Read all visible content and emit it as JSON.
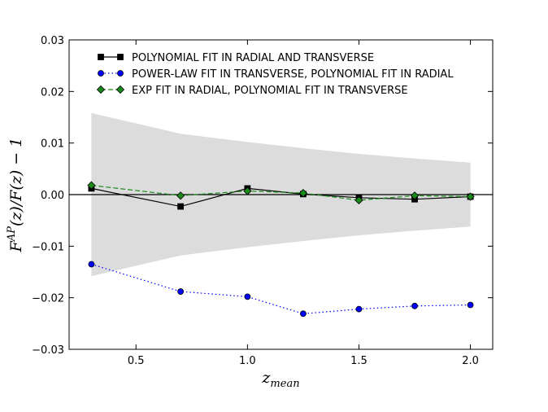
{
  "chart_data": {
    "type": "line",
    "title": "",
    "xlabel": "z_mean",
    "ylabel": "F^AP(z)/F(z) − 1",
    "xlim": [
      0.2,
      2.1
    ],
    "ylim": [
      -0.03,
      0.03
    ],
    "xticks": [
      0.5,
      1.0,
      1.5,
      2.0
    ],
    "xtick_labels": [
      "0.5",
      "1.0",
      "1.5",
      "2.0"
    ],
    "yticks": [
      -0.03,
      -0.02,
      -0.01,
      0.0,
      0.01,
      0.02,
      0.03
    ],
    "ytick_labels": [
      "−0.03",
      "−0.02",
      "−0.01",
      "0.00",
      "0.01",
      "0.02",
      "0.03"
    ],
    "grid": false,
    "legend_position": "top-left",
    "reference_line_y": 0,
    "band": {
      "x": [
        0.3,
        0.7,
        1.0,
        1.25,
        1.5,
        1.75,
        2.0
      ],
      "upper": [
        0.0158,
        0.0118,
        0.0102,
        0.009,
        0.0079,
        0.007,
        0.0062
      ],
      "lower": [
        -0.0158,
        -0.0118,
        -0.0102,
        -0.009,
        -0.0079,
        -0.007,
        -0.0062
      ],
      "color": "#dcdcdc"
    },
    "series": [
      {
        "name": "POLYNOMIAL FIT IN RADIAL AND TRANSVERSE",
        "x": [
          0.3,
          0.7,
          1.0,
          1.25,
          1.5,
          1.75,
          2.0
        ],
        "y": [
          0.0012,
          -0.0023,
          0.0012,
          0.0001,
          -0.0006,
          -0.0009,
          -0.0004
        ],
        "color": "#000000",
        "marker": "square",
        "linestyle": "solid"
      },
      {
        "name": "POWER-LAW FIT IN TRANSVERSE, POLYNOMIAL FIT IN RADIAL",
        "x": [
          0.3,
          0.7,
          1.0,
          1.25,
          1.5,
          1.75,
          2.0
        ],
        "y": [
          -0.0135,
          -0.0188,
          -0.0198,
          -0.0231,
          -0.0222,
          -0.0216,
          -0.0214
        ],
        "color": "#0000ff",
        "marker": "circle",
        "linestyle": "dotted"
      },
      {
        "name": "EXP FIT IN RADIAL, POLYNOMIAL FIT IN TRANSVERSE",
        "x": [
          0.3,
          0.7,
          1.0,
          1.25,
          1.5,
          1.75,
          2.0
        ],
        "y": [
          0.0018,
          -0.0002,
          0.0007,
          0.0003,
          -0.0011,
          -0.0002,
          -0.0004
        ],
        "color": "#1a8a1a",
        "marker": "diamond",
        "linestyle": "dashed"
      }
    ]
  }
}
